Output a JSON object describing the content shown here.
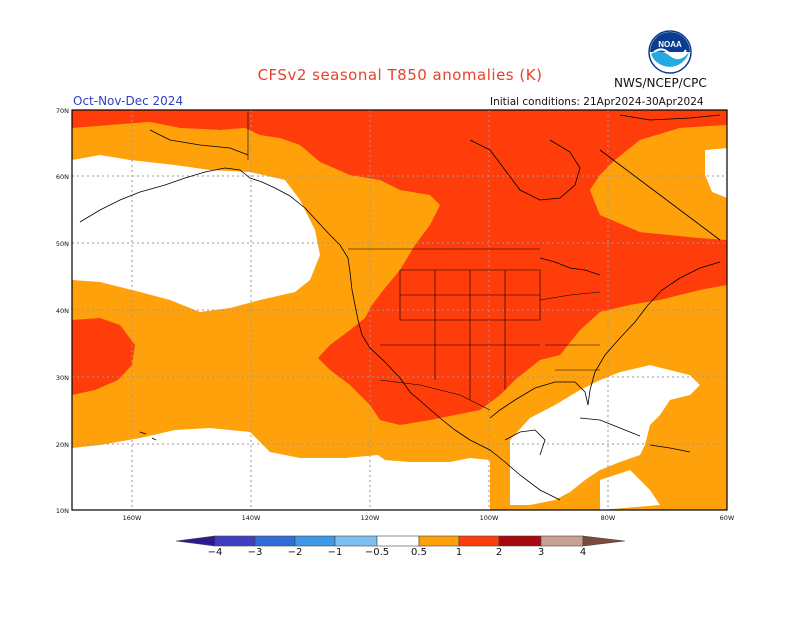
{
  "title": "CFSv2 seasonal T850 anomalies (K)",
  "agency": "NWS/NCEP/CPC",
  "period": "Oct-Nov-Dec 2024",
  "initial_conditions": "Initial conditions: 21Apr2024-30Apr2024",
  "logo_text": "NOAA",
  "lat_labels": [
    "70N",
    "60N",
    "50N",
    "40N",
    "30N",
    "20N",
    "10N"
  ],
  "lon_labels": [
    "160W",
    "140W",
    "120W",
    "100W",
    "80W",
    "60W"
  ],
  "legend": {
    "labels": [
      "−4",
      "−3",
      "−2",
      "−1",
      "−0.5",
      "0.5",
      "1",
      "2",
      "3",
      "4"
    ],
    "colors": {
      "below_-4": "#2a1b8e",
      "-4_-3": "#3f3fc4",
      "-3_-2": "#2e6ed6",
      "-2_-1": "#3d9ae8",
      "-1_-0.5": "#7fc0f2",
      "neutral": "#ffffff",
      "0.5_1": "#ffa10a",
      "1_2": "#ff3d0a",
      "2_3": "#a8090e",
      "3_4": "#c9a095",
      "above_4": "#7a4a3c"
    }
  },
  "map_colors": {
    "orange": "#ffa10a",
    "red_orange": "#ff3d0a",
    "white": "#ffffff",
    "grid": "#999999",
    "coast": "#000000"
  }
}
